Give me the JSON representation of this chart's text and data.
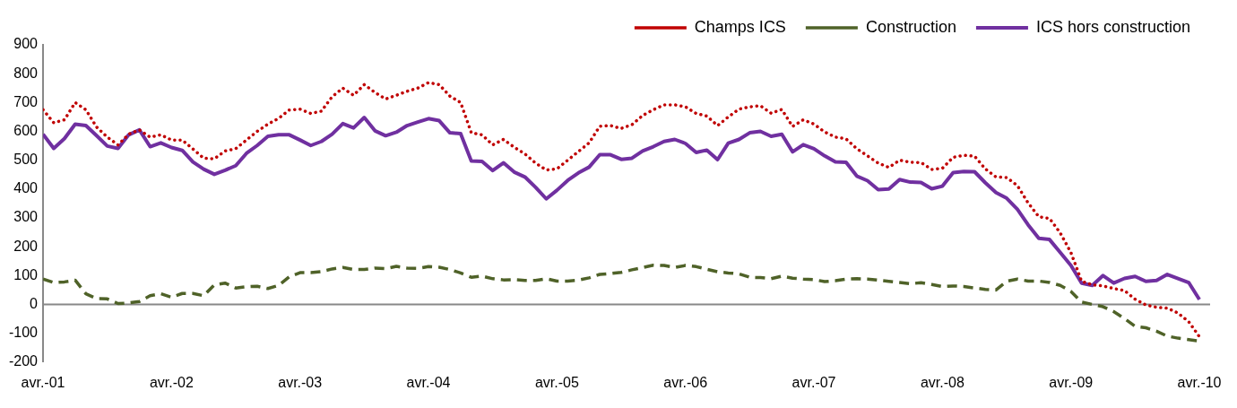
{
  "chart_data": {
    "type": "line",
    "x": [
      "2001-04",
      "2001-05",
      "2001-06",
      "2001-07",
      "2001-08",
      "2001-09",
      "2001-10",
      "2001-11",
      "2001-12",
      "2002-01",
      "2002-02",
      "2002-03",
      "2002-04",
      "2002-05",
      "2002-06",
      "2002-07",
      "2002-08",
      "2002-09",
      "2002-10",
      "2002-11",
      "2002-12",
      "2003-01",
      "2003-02",
      "2003-03",
      "2003-04",
      "2003-05",
      "2003-06",
      "2003-07",
      "2003-08",
      "2003-09",
      "2003-10",
      "2003-11",
      "2003-12",
      "2004-01",
      "2004-02",
      "2004-03",
      "2004-04",
      "2004-05",
      "2004-06",
      "2004-07",
      "2004-08",
      "2004-09",
      "2004-10",
      "2004-11",
      "2004-12",
      "2005-01",
      "2005-02",
      "2005-03",
      "2005-04",
      "2005-05",
      "2005-06",
      "2005-07",
      "2005-08",
      "2005-09",
      "2005-10",
      "2005-11",
      "2005-12",
      "2006-01",
      "2006-02",
      "2006-03",
      "2006-04",
      "2006-05",
      "2006-06",
      "2006-07",
      "2006-08",
      "2006-09",
      "2006-10",
      "2006-11",
      "2006-12",
      "2007-01",
      "2007-02",
      "2007-03",
      "2007-04",
      "2007-05",
      "2007-06",
      "2007-07",
      "2007-08",
      "2007-09",
      "2007-10",
      "2007-11",
      "2007-12",
      "2008-01",
      "2008-02",
      "2008-03",
      "2008-04",
      "2008-05",
      "2008-06",
      "2008-07",
      "2008-08",
      "2008-09",
      "2008-10",
      "2008-11",
      "2008-12",
      "2009-01",
      "2009-02",
      "2009-03",
      "2009-04",
      "2009-05",
      "2009-06",
      "2009-07",
      "2009-08",
      "2009-09",
      "2009-10",
      "2009-11",
      "2009-12",
      "2010-01",
      "2010-02",
      "2010-03",
      "2010-04"
    ],
    "series": [
      {
        "name": "Champs ICS",
        "color": "#c00000",
        "line_style": "dotted",
        "values": [
          675,
          630,
          640,
          700,
          675,
          615,
          580,
          553,
          590,
          605,
          580,
          588,
          570,
          570,
          539,
          507,
          505,
          532,
          540,
          570,
          600,
          625,
          645,
          674,
          677,
          662,
          670,
          720,
          750,
          725,
          762,
          735,
          712,
          725,
          739,
          750,
          769,
          762,
          722,
          700,
          595,
          588,
          553,
          572,
          545,
          522,
          490,
          466,
          470,
          500,
          530,
          560,
          618,
          620,
          610,
          623,
          655,
          675,
          692,
          692,
          685,
          662,
          653,
          620,
          650,
          677,
          685,
          689,
          663,
          676,
          617,
          640,
          625,
          598,
          580,
          574,
          540,
          515,
          490,
          475,
          500,
          493,
          492,
          468,
          472,
          510,
          517,
          514,
          470,
          442,
          440,
          412,
          352,
          304,
          298,
          248,
          180,
          80,
          68,
          64,
          55,
          48,
          18,
          -2,
          -10,
          -13,
          -30,
          -60,
          -112
        ]
      },
      {
        "name": "Construction",
        "color": "#4f6228",
        "line_style": "dashed",
        "values": [
          88,
          76,
          78,
          84,
          37,
          20,
          19,
          3,
          5,
          10,
          30,
          37,
          25,
          38,
          38,
          30,
          68,
          74,
          57,
          61,
          63,
          55,
          66,
          96,
          110,
          110,
          114,
          123,
          128,
          121,
          121,
          126,
          124,
          132,
          126,
          125,
          131,
          129,
          121,
          109,
          94,
          98,
          89,
          85,
          86,
          83,
          83,
          89,
          81,
          81,
          84,
          92,
          104,
          107,
          111,
          120,
          128,
          136,
          135,
          128,
          135,
          131,
          122,
          113,
          109,
          106,
          94,
          93,
          89,
          98,
          91,
          88,
          86,
          79,
          82,
          88,
          89,
          88,
          84,
          80,
          76,
          72,
          75,
          69,
          62,
          64,
          62,
          57,
          52,
          50,
          80,
          88,
          81,
          81,
          76,
          66,
          45,
          8,
          0,
          -8,
          -25,
          -49,
          -76,
          -81,
          -93,
          -110,
          -117,
          -122,
          -127
        ]
      },
      {
        "name": "ICS hors construction",
        "color": "#7030a0",
        "line_style": "solid",
        "values": [
          590,
          541,
          575,
          625,
          620,
          585,
          549,
          541,
          588,
          605,
          547,
          560,
          544,
          534,
          494,
          469,
          451,
          465,
          481,
          524,
          551,
          583,
          588,
          588,
          570,
          551,
          565,
          590,
          627,
          612,
          648,
          602,
          585,
          597,
          620,
          632,
          644,
          637,
          595,
          592,
          497,
          496,
          464,
          491,
          459,
          442,
          406,
          366,
          396,
          430,
          456,
          476,
          519,
          519,
          503,
          507,
          532,
          547,
          565,
          572,
          558,
          527,
          535,
          502,
          559,
          572,
          595,
          600,
          583,
          590,
          529,
          554,
          540,
          515,
          494,
          493,
          445,
          429,
          398,
          400,
          433,
          424,
          423,
          401,
          410,
          457,
          461,
          460,
          422,
          388,
          368,
          330,
          276,
          229,
          225,
          180,
          135,
          74,
          66,
          100,
          74,
          90,
          97,
          80,
          83,
          104,
          90,
          76,
          17
        ]
      }
    ],
    "xlim": [
      "2001-04",
      "2010-05"
    ],
    "xticks": [
      {
        "value": "2001-04",
        "label": "avr.-01"
      },
      {
        "value": "2002-04",
        "label": "avr.-02"
      },
      {
        "value": "2003-04",
        "label": "avr.-03"
      },
      {
        "value": "2004-04",
        "label": "avr.-04"
      },
      {
        "value": "2005-04",
        "label": "avr.-05"
      },
      {
        "value": "2006-04",
        "label": "avr.-06"
      },
      {
        "value": "2007-04",
        "label": "avr.-07"
      },
      {
        "value": "2008-04",
        "label": "avr.-08"
      },
      {
        "value": "2009-04",
        "label": "avr.-09"
      },
      {
        "value": "2010-04",
        "label": "avr.-10"
      }
    ],
    "ylim": [
      -200,
      900
    ],
    "yticks": [
      -200,
      -100,
      0,
      100,
      200,
      300,
      400,
      500,
      600,
      700,
      800,
      900
    ],
    "ref_lines": [
      {
        "axis": "y",
        "value": 0,
        "color": "#888888"
      }
    ],
    "grid": false,
    "legend": "top right",
    "marker": "none"
  }
}
